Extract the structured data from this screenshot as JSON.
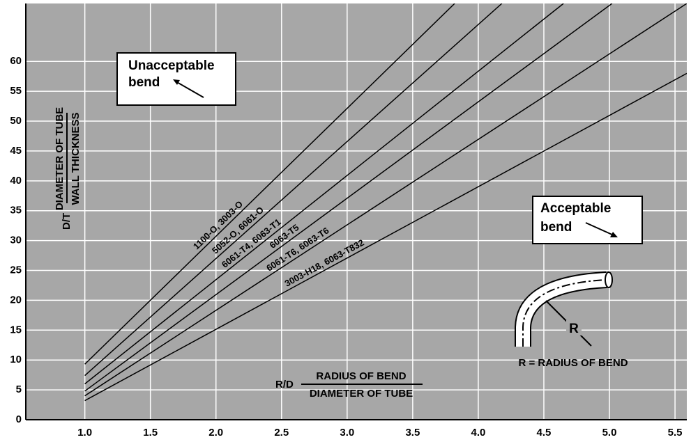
{
  "chart_data": {
    "type": "line",
    "x_label": {
      "symbol": "R/D",
      "numerator": "RADIUS OF BEND",
      "denominator": "DIAMETER OF TUBE"
    },
    "y_label": {
      "symbol": "D/T",
      "numerator": "DIAMETER OF TUBE",
      "denominator": "WALL THICKNESS"
    },
    "series": [
      {
        "name": "1100-O, 3003-O",
        "color": "#000000",
        "x": [
          1.0,
          3.82
        ],
        "values": [
          9.3,
          69.7
        ]
      },
      {
        "name": "5052-O, 6061-O",
        "color": "#000000",
        "x": [
          1.0,
          4.18
        ],
        "values": [
          7.4,
          69.7
        ]
      },
      {
        "name": "6061-T4, 6063-T1",
        "color": "#000000",
        "x": [
          1.0,
          4.65
        ],
        "values": [
          6.0,
          69.7
        ]
      },
      {
        "name": "6063-T5",
        "color": "#000000",
        "x": [
          1.0,
          5.02
        ],
        "values": [
          4.8,
          69.7
        ]
      },
      {
        "name": "6061-T6, 6063-T6",
        "color": "#000000",
        "x": [
          1.0,
          5.59
        ],
        "values": [
          4.0,
          69.7
        ]
      },
      {
        "name": "3003-H18, 6063-T832",
        "color": "#000000",
        "x": [
          1.0,
          5.59
        ],
        "values": [
          3.2,
          58
        ]
      }
    ],
    "xlim": [
      0.55,
      5.59
    ],
    "ylim": [
      0,
      69.7
    ],
    "xticks": [
      {
        "value": 1,
        "label": "1.0"
      },
      1.5,
      {
        "value": 2,
        "label": "2.0"
      },
      2.5,
      {
        "value": 3,
        "label": "3.0"
      },
      3.5,
      {
        "value": 4,
        "label": "4.0"
      },
      4.5,
      {
        "value": 5,
        "label": "5.0"
      },
      5.5
    ],
    "yticks": [
      0,
      5,
      10,
      15,
      20,
      25,
      30,
      35,
      40,
      45,
      50,
      55,
      60
    ],
    "grid": true,
    "annotations": {
      "unacceptable": "Unacceptable bend",
      "acceptable": "Acceptable bend",
      "r": "R",
      "r_def": "R = RADIUS OF BEND"
    }
  }
}
